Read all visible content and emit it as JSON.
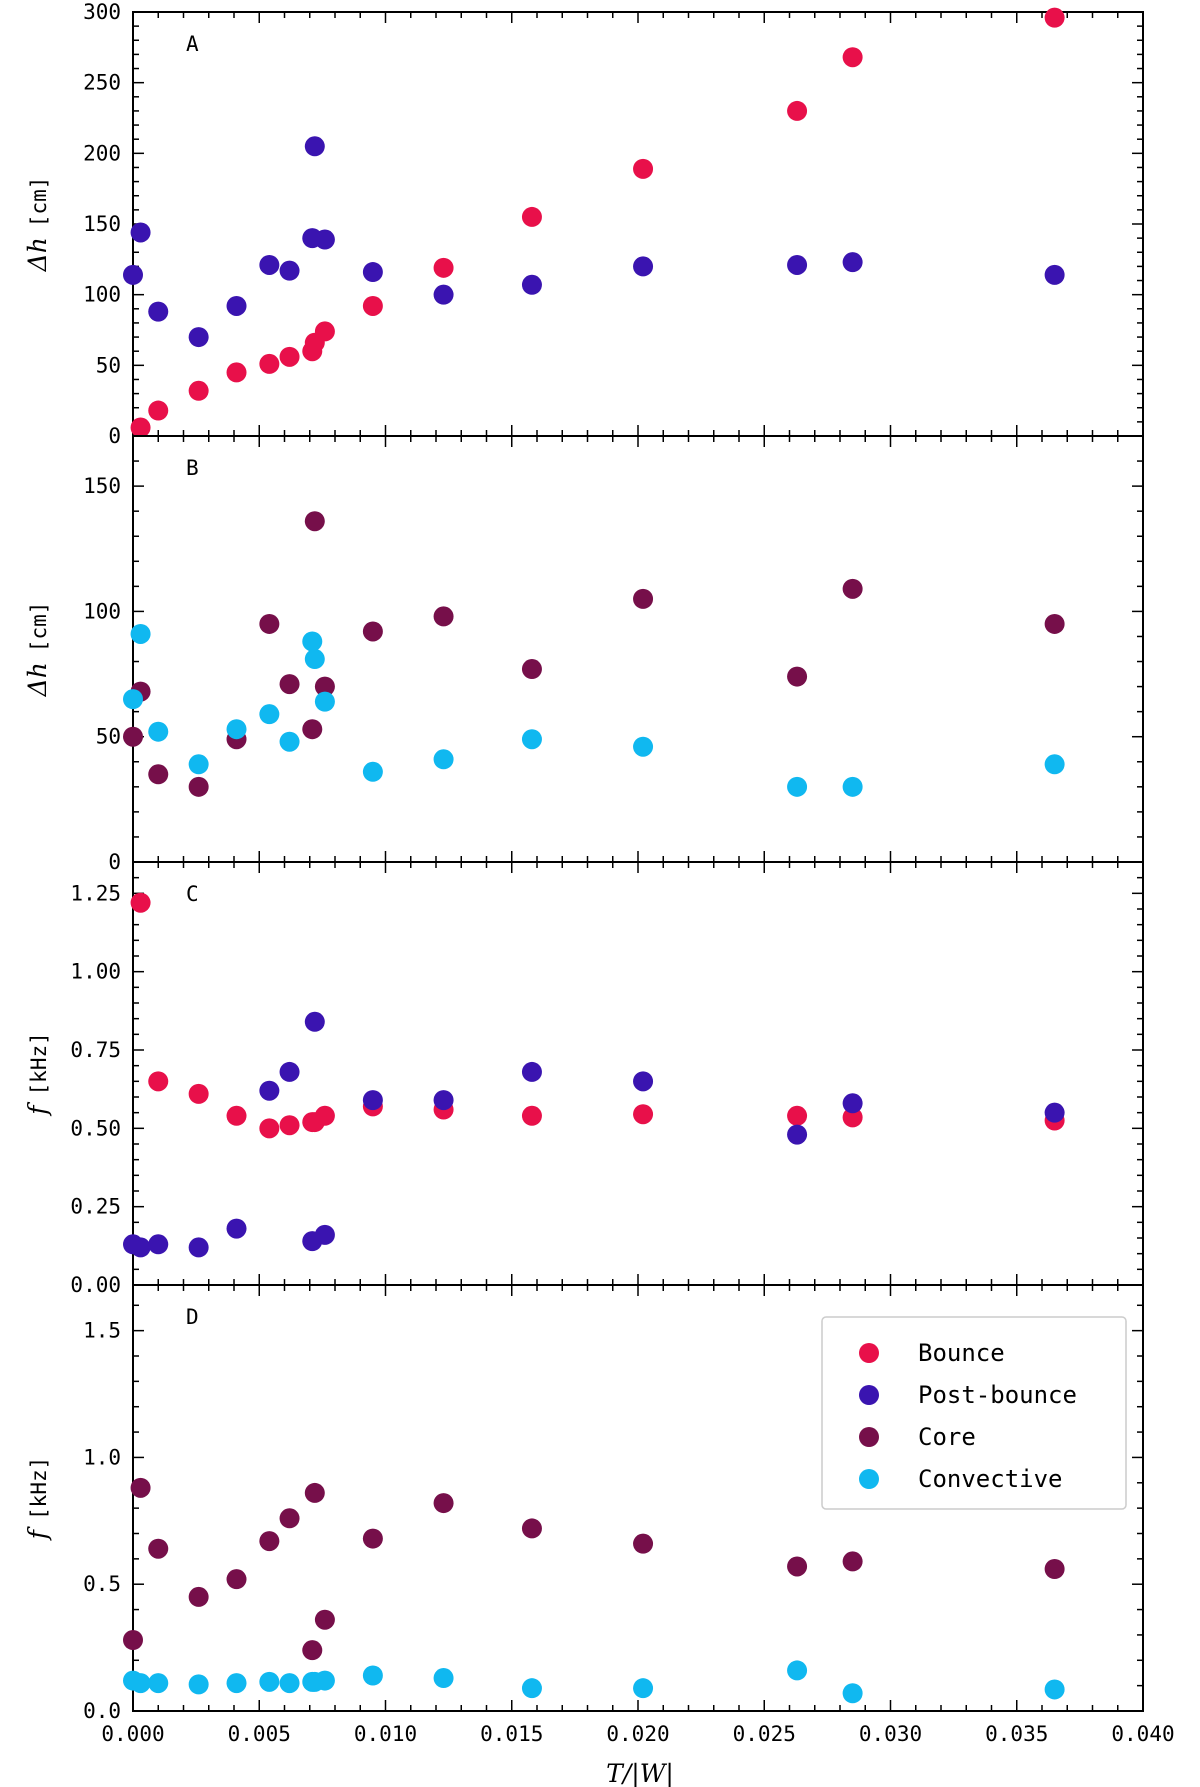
{
  "chart_data": {
    "type": "scatter",
    "xlabel": "T/|W|",
    "xlim": [
      0.0,
      0.04
    ],
    "x_ticks": [
      "0.000",
      "0.005",
      "0.010",
      "0.015",
      "0.020",
      "0.025",
      "0.030",
      "0.035",
      "0.040"
    ],
    "colors": {
      "Bounce": "#e8104a",
      "Post-bounce": "#3a14b0",
      "Core": "#760f4a",
      "Convective": "#10b8f0"
    },
    "legend": {
      "panel": "D",
      "placement": "upper-right",
      "entries": [
        "Bounce",
        "Post-bounce",
        "Core",
        "Convective"
      ]
    },
    "panels": [
      {
        "id": "A",
        "ylabel_symbol": "Δh",
        "ylabel_unit": "[cm]",
        "ylim": [
          0,
          300
        ],
        "y_ticks": [
          "0",
          "50",
          "100",
          "150",
          "200",
          "250",
          "300"
        ],
        "series": [
          {
            "name": "Bounce",
            "points": [
              [
                0.0003,
                6
              ],
              [
                0.001,
                18
              ],
              [
                0.0026,
                32
              ],
              [
                0.0041,
                45
              ],
              [
                0.0054,
                51
              ],
              [
                0.0062,
                56
              ],
              [
                0.0071,
                60
              ],
              [
                0.0072,
                66
              ],
              [
                0.0076,
                74
              ],
              [
                0.0095,
                92
              ],
              [
                0.0123,
                119
              ],
              [
                0.0158,
                155
              ],
              [
                0.0202,
                189
              ],
              [
                0.0263,
                230
              ],
              [
                0.0285,
                268
              ],
              [
                0.0365,
                296
              ]
            ]
          },
          {
            "name": "Post-bounce",
            "points": [
              [
                0.0,
                114
              ],
              [
                0.0003,
                144
              ],
              [
                0.001,
                88
              ],
              [
                0.0026,
                70
              ],
              [
                0.0041,
                92
              ],
              [
                0.0054,
                121
              ],
              [
                0.0062,
                117
              ],
              [
                0.0071,
                140
              ],
              [
                0.0072,
                205
              ],
              [
                0.0076,
                139
              ],
              [
                0.0095,
                116
              ],
              [
                0.0123,
                100
              ],
              [
                0.0158,
                107
              ],
              [
                0.0202,
                120
              ],
              [
                0.0263,
                121
              ],
              [
                0.0285,
                123
              ],
              [
                0.0365,
                114
              ]
            ]
          }
        ]
      },
      {
        "id": "B",
        "ylabel_symbol": "Δh",
        "ylabel_unit": "[cm]",
        "ylim": [
          0,
          170
        ],
        "y_ticks": [
          "0",
          "50",
          "100",
          "150"
        ],
        "series": [
          {
            "name": "Core",
            "points": [
              [
                0.0,
                50
              ],
              [
                0.0003,
                68
              ],
              [
                0.001,
                35
              ],
              [
                0.0026,
                30
              ],
              [
                0.0041,
                49
              ],
              [
                0.0054,
                95
              ],
              [
                0.0062,
                71
              ],
              [
                0.0071,
                53
              ],
              [
                0.0072,
                136
              ],
              [
                0.0076,
                70
              ],
              [
                0.0095,
                92
              ],
              [
                0.0123,
                98
              ],
              [
                0.0158,
                77
              ],
              [
                0.0202,
                105
              ],
              [
                0.0263,
                74
              ],
              [
                0.0285,
                109
              ],
              [
                0.0365,
                95
              ]
            ]
          },
          {
            "name": "Convective",
            "points": [
              [
                0.0,
                65
              ],
              [
                0.0003,
                91
              ],
              [
                0.001,
                52
              ],
              [
                0.0026,
                39
              ],
              [
                0.0041,
                53
              ],
              [
                0.0054,
                59
              ],
              [
                0.0062,
                48
              ],
              [
                0.0071,
                88
              ],
              [
                0.0072,
                81
              ],
              [
                0.0076,
                64
              ],
              [
                0.0095,
                36
              ],
              [
                0.0123,
                41
              ],
              [
                0.0158,
                49
              ],
              [
                0.0202,
                46
              ],
              [
                0.0263,
                30
              ],
              [
                0.0285,
                30
              ],
              [
                0.0365,
                39
              ]
            ]
          }
        ]
      },
      {
        "id": "C",
        "ylabel_symbol": "f",
        "ylabel_unit": "[kHz]",
        "ylim": [
          0.0,
          1.35
        ],
        "y_ticks": [
          "0.00",
          "0.25",
          "0.50",
          "0.75",
          "1.00",
          "1.25"
        ],
        "series": [
          {
            "name": "Bounce",
            "points": [
              [
                0.0003,
                1.22
              ],
              [
                0.001,
                0.65
              ],
              [
                0.0026,
                0.61
              ],
              [
                0.0041,
                0.54
              ],
              [
                0.0054,
                0.5
              ],
              [
                0.0062,
                0.51
              ],
              [
                0.0071,
                0.52
              ],
              [
                0.0072,
                0.52
              ],
              [
                0.0076,
                0.54
              ],
              [
                0.0095,
                0.57
              ],
              [
                0.0123,
                0.56
              ],
              [
                0.0158,
                0.54
              ],
              [
                0.0202,
                0.545
              ],
              [
                0.0263,
                0.54
              ],
              [
                0.0285,
                0.535
              ],
              [
                0.0365,
                0.525
              ]
            ]
          },
          {
            "name": "Post-bounce",
            "points": [
              [
                0.0,
                0.13
              ],
              [
                0.0003,
                0.12
              ],
              [
                0.001,
                0.13
              ],
              [
                0.0026,
                0.12
              ],
              [
                0.0041,
                0.18
              ],
              [
                0.0054,
                0.62
              ],
              [
                0.0062,
                0.68
              ],
              [
                0.0071,
                0.14
              ],
              [
                0.0072,
                0.84
              ],
              [
                0.0076,
                0.16
              ],
              [
                0.0095,
                0.59
              ],
              [
                0.0123,
                0.59
              ],
              [
                0.0158,
                0.68
              ],
              [
                0.0202,
                0.65
              ],
              [
                0.0263,
                0.48
              ],
              [
                0.0285,
                0.58
              ],
              [
                0.0365,
                0.55
              ]
            ]
          }
        ]
      },
      {
        "id": "D",
        "ylabel_symbol": "f",
        "ylabel_unit": "[kHz]",
        "ylim": [
          0.0,
          1.68
        ],
        "y_ticks": [
          "0.0",
          "0.5",
          "1.0",
          "1.5"
        ],
        "series": [
          {
            "name": "Core",
            "points": [
              [
                0.0,
                0.28
              ],
              [
                0.0003,
                0.88
              ],
              [
                0.001,
                0.64
              ],
              [
                0.0026,
                0.45
              ],
              [
                0.0041,
                0.52
              ],
              [
                0.0054,
                0.67
              ],
              [
                0.0062,
                0.76
              ],
              [
                0.0071,
                0.24
              ],
              [
                0.0072,
                0.86
              ],
              [
                0.0076,
                0.36
              ],
              [
                0.0095,
                0.68
              ],
              [
                0.0123,
                0.82
              ],
              [
                0.0158,
                0.72
              ],
              [
                0.0202,
                0.66
              ],
              [
                0.0263,
                0.57
              ],
              [
                0.0285,
                0.59
              ],
              [
                0.0365,
                0.56
              ]
            ]
          },
          {
            "name": "Convective",
            "points": [
              [
                0.0,
                0.12
              ],
              [
                0.0003,
                0.11
              ],
              [
                0.001,
                0.11
              ],
              [
                0.0026,
                0.105
              ],
              [
                0.0041,
                0.11
              ],
              [
                0.0054,
                0.115
              ],
              [
                0.0062,
                0.11
              ],
              [
                0.0071,
                0.115
              ],
              [
                0.0072,
                0.115
              ],
              [
                0.0076,
                0.12
              ],
              [
                0.0095,
                0.14
              ],
              [
                0.0123,
                0.13
              ],
              [
                0.0158,
                0.09
              ],
              [
                0.0202,
                0.09
              ],
              [
                0.0263,
                0.16
              ],
              [
                0.0285,
                0.07
              ],
              [
                0.0365,
                0.085
              ]
            ]
          }
        ]
      }
    ]
  }
}
